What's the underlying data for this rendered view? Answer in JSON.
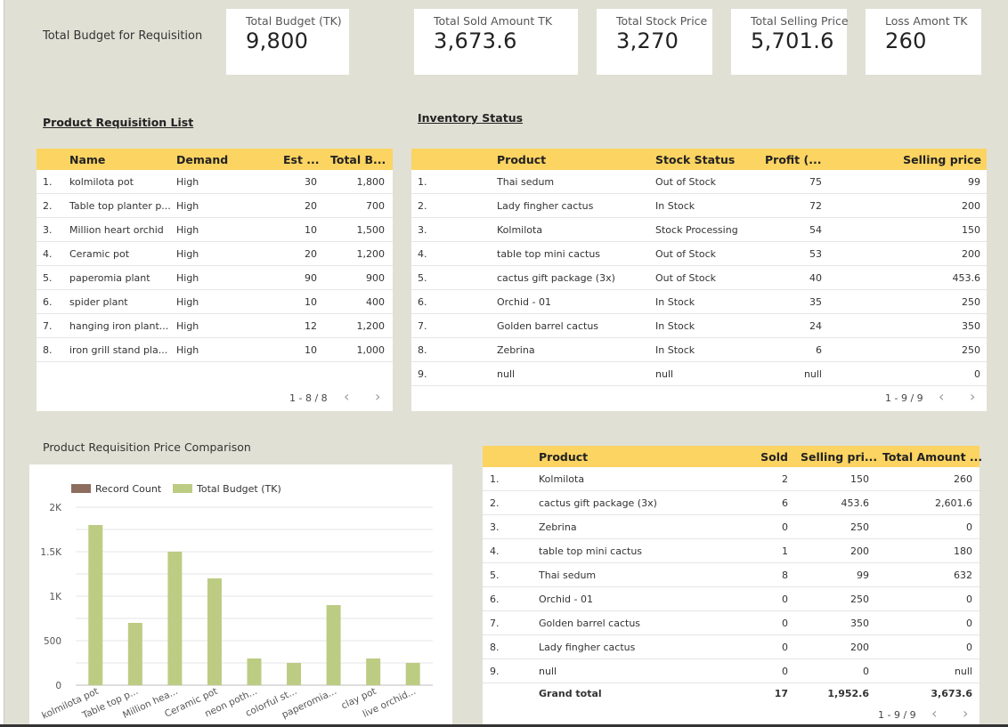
{
  "budget_label": "Total Budget for Requisition",
  "kpis": [
    {
      "title": "Total Budget (TK)",
      "value": "9,800"
    },
    {
      "title": "Total Sold Amount TK",
      "value": "3,673.6"
    },
    {
      "title": "Total Stock Price",
      "value": "3,270"
    },
    {
      "title": "Total Selling Price",
      "value": "5,701.6"
    },
    {
      "title": "Loss Amont TK",
      "value": "260"
    }
  ],
  "requisition": {
    "title": "Product Requisition List",
    "headers": [
      "Name",
      "Demand",
      "Est ...",
      "Total B..."
    ],
    "rows": [
      [
        "1.",
        "kolmilota pot",
        "High",
        "30",
        "1,800"
      ],
      [
        "2.",
        "Table top planter p...",
        "High",
        "20",
        "700"
      ],
      [
        "3.",
        "Million heart orchid",
        "High",
        "10",
        "1,500"
      ],
      [
        "4.",
        "Ceramic pot",
        "High",
        "20",
        "1,200"
      ],
      [
        "5.",
        "paperomia plant",
        "High",
        "90",
        "900"
      ],
      [
        "6.",
        "spider plant",
        "High",
        "10",
        "400"
      ],
      [
        "7.",
        "hanging iron plant...",
        "High",
        "12",
        "1,200"
      ],
      [
        "8.",
        "iron grill stand pla...",
        "High",
        "10",
        "1,000"
      ]
    ],
    "pager": "1 - 8 / 8"
  },
  "inventory": {
    "title": "Inventory Status",
    "headers": [
      "Product",
      "Stock Status",
      "Profit (...",
      "Selling price"
    ],
    "rows": [
      [
        "1.",
        "Thai sedum",
        "Out of Stock",
        "75",
        "99"
      ],
      [
        "2.",
        "Lady fingher cactus",
        "In Stock",
        "72",
        "200"
      ],
      [
        "3.",
        "Kolmilota",
        "Stock Processing",
        "54",
        "150"
      ],
      [
        "4.",
        "table top mini cactus",
        "Out of Stock",
        "53",
        "200"
      ],
      [
        "5.",
        "cactus gift package (3x)",
        "Out of Stock",
        "40",
        "453.6"
      ],
      [
        "6.",
        "Orchid - 01",
        "In Stock",
        "35",
        "250"
      ],
      [
        "7.",
        "Golden barrel cactus",
        "In Stock",
        "24",
        "350"
      ],
      [
        "8.",
        "Zebrina",
        "In Stock",
        "6",
        "250"
      ],
      [
        "9.",
        "null",
        "null",
        "null",
        "0"
      ]
    ],
    "pager": "1 - 9 / 9"
  },
  "sales": {
    "headers": [
      "Product",
      "Sold",
      "Selling pri...",
      "Total Amount ..."
    ],
    "rows": [
      [
        "1.",
        "Kolmilota",
        "2",
        "150",
        "260"
      ],
      [
        "2.",
        "cactus gift package (3x)",
        "6",
        "453.6",
        "2,601.6"
      ],
      [
        "3.",
        "Zebrina",
        "0",
        "250",
        "0"
      ],
      [
        "4.",
        "table top mini cactus",
        "1",
        "200",
        "180"
      ],
      [
        "5.",
        "Thai sedum",
        "8",
        "99",
        "632"
      ],
      [
        "6.",
        "Orchid - 01",
        "0",
        "250",
        "0"
      ],
      [
        "7.",
        "Golden barrel cactus",
        "0",
        "350",
        "0"
      ],
      [
        "8.",
        "Lady fingher cactus",
        "0",
        "200",
        "0"
      ],
      [
        "9.",
        "null",
        "0",
        "0",
        "null"
      ]
    ],
    "grand_total": [
      "Grand total",
      "17",
      "1,952.6",
      "3,673.6"
    ],
    "pager": "1 - 9 / 9"
  },
  "chart_title": "Product Requisition Price Comparison",
  "chart_data": {
    "type": "bar",
    "title": "Product Requisition Price Comparison",
    "categories": [
      "kolmilota pot",
      "Table top p...",
      "Million hea...",
      "Ceramic pot",
      "neon poth...",
      "colorful st...",
      "paperomia...",
      "clay pot",
      "live orchid..."
    ],
    "series": [
      {
        "name": "Record Count",
        "color": "#8d6e5e",
        "values": [
          1,
          1,
          1,
          1,
          1,
          1,
          1,
          1,
          1
        ]
      },
      {
        "name": "Total Budget (TK)",
        "color": "#bccc83",
        "values": [
          1800,
          700,
          1500,
          1200,
          300,
          250,
          900,
          300,
          250
        ]
      }
    ],
    "yticks": [
      "0",
      "500",
      "1K",
      "1.5K",
      "2K"
    ],
    "ytick_values": [
      0,
      500,
      1000,
      1500,
      2000
    ],
    "ylim": [
      0,
      2000
    ],
    "legend": "top-left",
    "grid": true
  }
}
